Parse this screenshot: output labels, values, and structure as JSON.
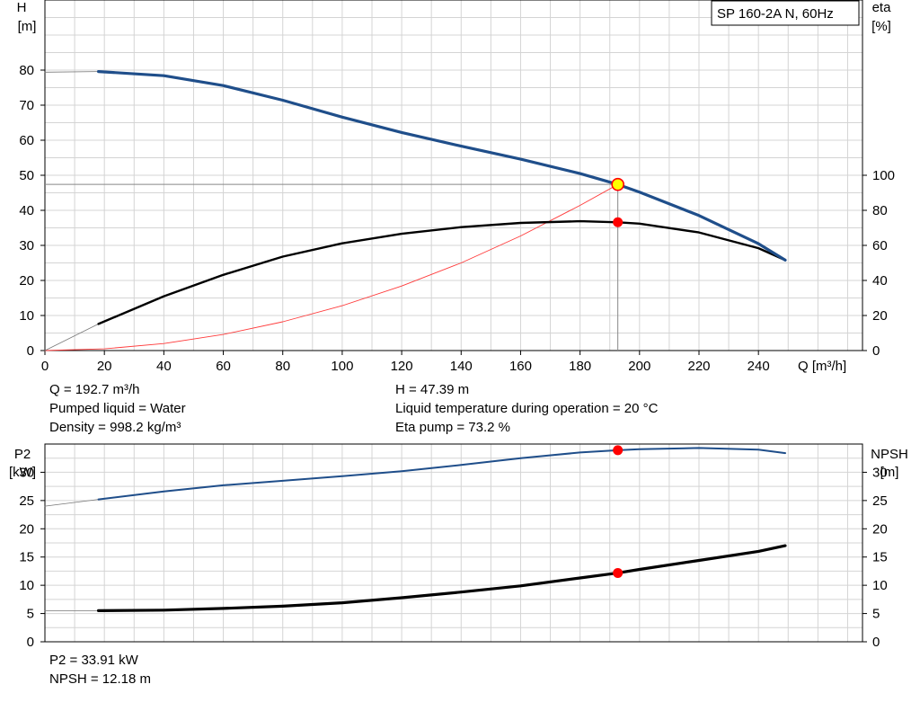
{
  "pump_label": "SP 160-2A N, 60Hz",
  "units": {
    "h_axis": "H",
    "h_unit": "[m]",
    "eta_axis": "eta",
    "eta_unit": "[%]",
    "q_axis": "Q [m³/h]",
    "p2_axis": "P2",
    "p2_unit": "[kW]",
    "npsh_axis": "NPSH",
    "npsh_unit": "[m]"
  },
  "info_top": {
    "q": "Q = 192.7 m³/h",
    "liquid": "Pumped liquid = Water",
    "density": "Density = 998.2 kg/m³",
    "h": "H = 47.39 m",
    "temperature": "Liquid temperature during operation = 20 °C",
    "eta": "Eta pump = 73.2 %"
  },
  "info_bottom": {
    "p2": "P2 = 33.91 kW",
    "npsh": "NPSH = 12.18 m"
  },
  "colors": {
    "head_curve": "#1f4e8a",
    "p2_curve": "#1f4e8a",
    "eta_curve": "#000000",
    "npsh_curve": "#000000",
    "system_curve": "#ff3b3b",
    "duty_point": "#ff0000",
    "duty_marker": "#ffff00",
    "grid": "#d4d4d4"
  },
  "chart_data": [
    {
      "type": "line",
      "name": "top",
      "xlim": [
        0,
        275
      ],
      "ylim": [
        0,
        100
      ],
      "eta_lim": [
        0,
        200
      ],
      "x_ticks": [
        0,
        20,
        40,
        60,
        80,
        100,
        120,
        140,
        160,
        180,
        200,
        220,
        240
      ],
      "y_ticks": [
        0,
        10,
        20,
        30,
        40,
        50,
        60,
        70,
        80
      ],
      "eta_ticks": [
        0,
        20,
        40,
        60,
        80,
        100
      ],
      "grid": true,
      "head_extension": {
        "x": [
          0,
          18
        ],
        "y": [
          79.4,
          79.6
        ]
      },
      "head": {
        "x": [
          18,
          40,
          60,
          80,
          100,
          120,
          140,
          160,
          180,
          192.7,
          200,
          220,
          240,
          249
        ],
        "y": [
          79.6,
          78.4,
          75.6,
          71.4,
          66.6,
          62.2,
          58.3,
          54.6,
          50.5,
          47.39,
          45.2,
          38.5,
          30.5,
          25.8
        ]
      },
      "eta_extension": {
        "x": [
          0,
          18
        ],
        "y": [
          0,
          15.2
        ]
      },
      "eta": {
        "x": [
          18,
          40,
          60,
          80,
          100,
          120,
          140,
          160,
          180,
          192.7,
          200,
          220,
          240,
          249
        ],
        "y": [
          15.2,
          31.0,
          43.2,
          53.6,
          61.2,
          66.6,
          70.4,
          72.8,
          73.8,
          73.2,
          72.4,
          67.4,
          58.4,
          51.6
        ]
      },
      "system_curve": {
        "x": [
          0,
          20,
          40,
          60,
          80,
          100,
          120,
          140,
          160,
          180,
          192.7
        ],
        "y": [
          0,
          0.5,
          2.0,
          4.6,
          8.2,
          12.8,
          18.4,
          25.0,
          32.7,
          41.4,
          47.39
        ]
      },
      "duty_point": {
        "q": 192.7,
        "h": 47.39,
        "eta": 73.2
      }
    },
    {
      "type": "line",
      "name": "bottom",
      "xlim": [
        0,
        275
      ],
      "ylim": [
        0,
        35
      ],
      "y_ticks": [
        0,
        5,
        10,
        15,
        20,
        25,
        30
      ],
      "grid": true,
      "p2_extension": {
        "x": [
          0,
          18
        ],
        "y": [
          24.0,
          25.2
        ]
      },
      "p2": {
        "x": [
          18,
          40,
          60,
          80,
          100,
          120,
          140,
          160,
          180,
          192.7,
          200,
          220,
          240,
          249
        ],
        "y": [
          25.2,
          26.6,
          27.7,
          28.5,
          29.3,
          30.2,
          31.3,
          32.5,
          33.5,
          33.91,
          34.1,
          34.3,
          34.0,
          33.4
        ]
      },
      "npsh_extension": {
        "x": [
          0,
          18
        ],
        "y": [
          5.5,
          5.5
        ]
      },
      "npsh": {
        "x": [
          18,
          40,
          60,
          80,
          100,
          120,
          140,
          160,
          180,
          192.7,
          200,
          220,
          240,
          249
        ],
        "y": [
          5.5,
          5.6,
          5.9,
          6.3,
          6.9,
          7.8,
          8.8,
          9.9,
          11.3,
          12.18,
          12.8,
          14.4,
          16.0,
          17.0
        ]
      },
      "duty_point": {
        "q": 192.7,
        "p2": 33.91,
        "npsh": 12.18
      }
    }
  ]
}
